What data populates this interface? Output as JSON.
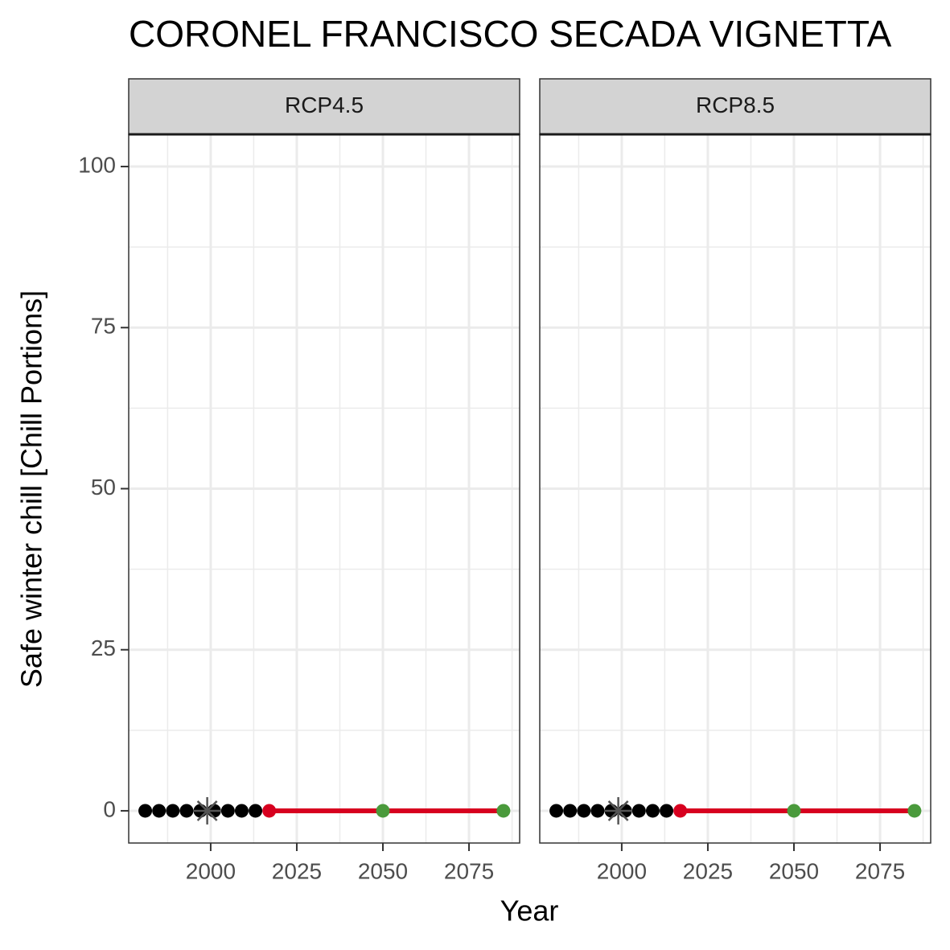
{
  "title": "CORONEL FRANCISCO SECADA VIGNETTA",
  "x_label": "Year",
  "y_label": "Safe winter chill [Chill Portions]",
  "chart_data": [
    {
      "type": "scatter",
      "title": "RCP4.5",
      "xlim": [
        1976.2,
        2089.7
      ],
      "ylim": [
        -5,
        105
      ],
      "xticks": [
        2000,
        2025,
        2050,
        2075
      ],
      "yticks": [
        0,
        25,
        50,
        75,
        100
      ],
      "xminorticks": [
        1987.5,
        2012.5,
        2037.5,
        2062.5,
        2087.5
      ],
      "yminorticks": [
        12.5,
        37.5,
        62.5,
        87.5
      ],
      "grid": true,
      "series": [
        {
          "color": "#000000",
          "marker": "circle",
          "line": false,
          "x": [
            1981,
            1985,
            1989,
            1993,
            1997,
            2001,
            2005,
            2009,
            2013
          ],
          "values": [
            0,
            0,
            0,
            0,
            0,
            0,
            0,
            0,
            0
          ]
        },
        {
          "color": "#d7001f",
          "marker": "none",
          "line": true,
          "x": [
            2017,
            2050,
            2085
          ],
          "values": [
            0,
            0,
            0
          ]
        },
        {
          "color": "#d7001f",
          "marker": "circle",
          "line": false,
          "x": [
            2017
          ],
          "values": [
            0
          ]
        },
        {
          "color": "#4a9a3c",
          "marker": "circle",
          "line": false,
          "x": [
            2050,
            2085
          ],
          "values": [
            0,
            0
          ]
        },
        {
          "color": "#555555",
          "marker": "asterisk",
          "line": false,
          "x": [
            1999
          ],
          "values": [
            0
          ]
        }
      ]
    },
    {
      "type": "scatter",
      "title": "RCP8.5",
      "xlim": [
        1976.2,
        2089.7
      ],
      "ylim": [
        -5,
        105
      ],
      "xticks": [
        2000,
        2025,
        2050,
        2075
      ],
      "yticks": [
        0,
        25,
        50,
        75,
        100
      ],
      "xminorticks": [
        1987.5,
        2012.5,
        2037.5,
        2062.5,
        2087.5
      ],
      "yminorticks": [
        12.5,
        37.5,
        62.5,
        87.5
      ],
      "grid": true,
      "series": [
        {
          "color": "#000000",
          "marker": "circle",
          "line": false,
          "x": [
            1981,
            1985,
            1989,
            1993,
            1997,
            2001,
            2005,
            2009,
            2013
          ],
          "values": [
            0,
            0,
            0,
            0,
            0,
            0,
            0,
            0,
            0
          ]
        },
        {
          "color": "#d7001f",
          "marker": "none",
          "line": true,
          "x": [
            2017,
            2050,
            2085
          ],
          "values": [
            0,
            0,
            0
          ]
        },
        {
          "color": "#d7001f",
          "marker": "circle",
          "line": false,
          "x": [
            2017
          ],
          "values": [
            0
          ]
        },
        {
          "color": "#4a9a3c",
          "marker": "circle",
          "line": false,
          "x": [
            2050,
            2085
          ],
          "values": [
            0,
            0
          ]
        },
        {
          "color": "#555555",
          "marker": "asterisk",
          "line": false,
          "x": [
            1999
          ],
          "values": [
            0
          ]
        }
      ]
    }
  ]
}
